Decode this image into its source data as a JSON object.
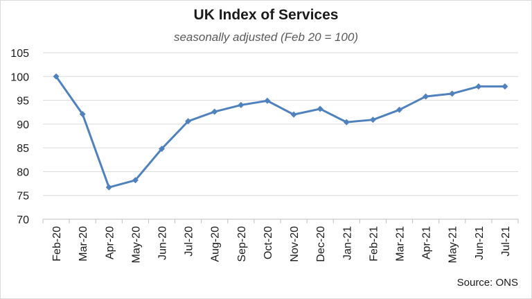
{
  "chart_data": {
    "type": "line",
    "title": "UK Index of Services",
    "subtitle": "seasonally adjusted (Feb 20 = 100)",
    "source": "Source: ONS",
    "categories": [
      "Feb-20",
      "Mar-20",
      "Apr-20",
      "May-20",
      "Jun-20",
      "Jul-20",
      "Aug-20",
      "Sep-20",
      "Oct-20",
      "Nov-20",
      "Dec-20",
      "Jan-21",
      "Feb-21",
      "Mar-21",
      "Apr-21",
      "May-21",
      "Jun-21",
      "Jul-21"
    ],
    "series": [
      {
        "values": [
          100,
          92.1,
          76.7,
          78.2,
          84.8,
          90.6,
          92.6,
          94.0,
          94.9,
          92.0,
          93.2,
          90.4,
          90.9,
          93.0,
          95.8,
          96.4,
          97.9,
          97.9
        ],
        "color": "#4f81bd"
      }
    ],
    "ylim": [
      70,
      105
    ],
    "yticks": [
      70,
      75,
      80,
      85,
      90,
      95,
      100,
      105
    ],
    "grid": true,
    "legend": false
  }
}
